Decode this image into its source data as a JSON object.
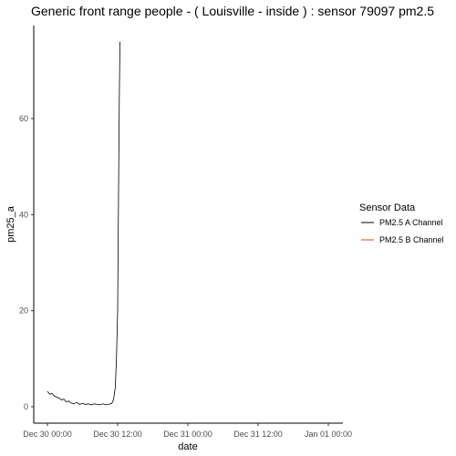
{
  "chart_data": {
    "type": "line",
    "title": "Generic front range people - ( Louisville - inside ) : sensor 79097 pm2.5",
    "xlabel": "date",
    "ylabel": "pm25_a",
    "x_ticks": [
      "Dec 30 00:00",
      "Dec 30 12:00",
      "Dec 31 00:00",
      "Dec 31 12:00",
      "Jan 01 00:00"
    ],
    "y_ticks": [
      0,
      20,
      40,
      60
    ],
    "ylim": [
      -2,
      80
    ],
    "grid": false,
    "legend": {
      "title": "Sensor Data",
      "placement": "right",
      "entries": [
        "PM2.5 A Channel",
        "PM2.5 B Channel"
      ]
    },
    "series": [
      {
        "name": "PM2.5 A Channel",
        "color": "#000000",
        "x_hours": [
          0,
          0.4,
          0.8,
          1.2,
          1.6,
          2.0,
          2.4,
          2.8,
          3.2,
          3.6,
          4.0,
          4.5,
          5.0,
          5.5,
          6.0,
          6.5,
          7.0,
          7.5,
          8.0,
          8.5,
          9.0,
          9.5,
          10.0,
          10.5,
          11.0,
          11.3,
          11.6,
          11.8,
          12.0,
          12.1,
          12.2,
          12.3,
          12.4
        ],
        "values": [
          3.2,
          2.6,
          2.8,
          2.2,
          2.0,
          1.8,
          1.4,
          1.6,
          1.0,
          1.2,
          0.8,
          0.6,
          0.9,
          0.5,
          0.7,
          0.5,
          0.6,
          0.4,
          0.6,
          0.5,
          0.4,
          0.6,
          0.4,
          0.5,
          0.7,
          1.5,
          4.0,
          10.0,
          20.0,
          35.0,
          52.0,
          66.0,
          76.0
        ]
      },
      {
        "name": "PM2.5 B Channel",
        "color": "#e8402a",
        "x_hours": [],
        "values": []
      }
    ]
  }
}
